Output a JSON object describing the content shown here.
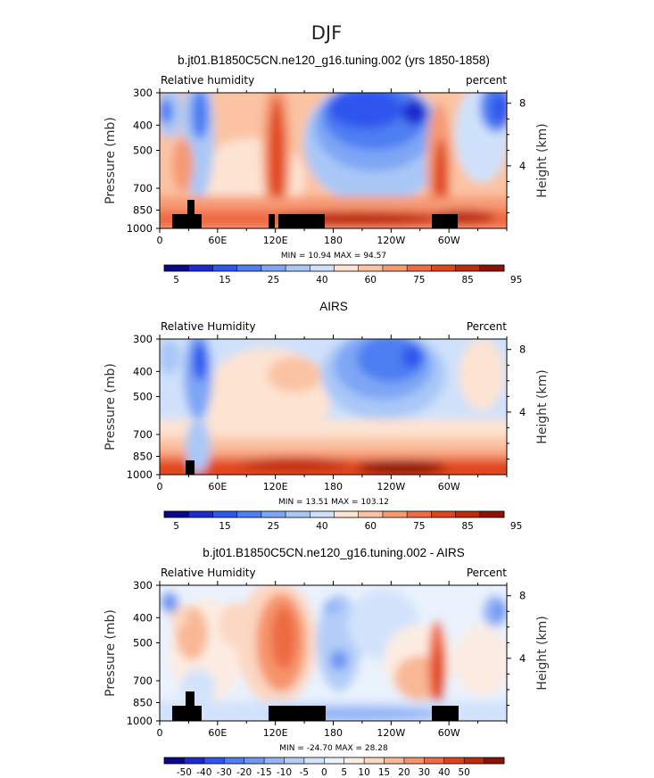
{
  "figure": {
    "title": "DJF"
  },
  "colors": {
    "rh_levels": [
      "#08088a",
      "#1c2bd0",
      "#2f56ee",
      "#4d7ef2",
      "#7ea6f5",
      "#a9c8f7",
      "#cfe1fa",
      "#fde3d2",
      "#fbc3a3",
      "#f69a73",
      "#ef6b45",
      "#e0461d",
      "#c02a0c",
      "#8e1206"
    ],
    "diff_levels": [
      "#08088a",
      "#1c2bd0",
      "#2f56ee",
      "#4d7ef2",
      "#6f97f3",
      "#93b4f6",
      "#b3cdf8",
      "#d2e3fb",
      "#eaf2fd",
      "#fdece2",
      "#fcd7c2",
      "#f9b895",
      "#f5946b",
      "#ee6a42",
      "#de431b",
      "#bd2a0c",
      "#8e1206"
    ],
    "land_mask": "#000000"
  },
  "chart_data": [
    {
      "type": "heatmap",
      "title": "b.jt01.B1850C5CN.ne120_g16.tuning.002 (yrs 1850-1858)",
      "left_label": "Relative humidity",
      "right_label": "percent",
      "ylabel": "Pressure (mb)",
      "ylabel_right": "Height (km)",
      "y_ticks": [
        "300",
        "400",
        "500",
        "700",
        "850",
        "1000"
      ],
      "y_tick_values": [
        300,
        400,
        500,
        700,
        850,
        1000
      ],
      "right_ticks": [
        "8",
        "4"
      ],
      "right_tick_values": [
        8,
        4
      ],
      "x_ticks": [
        "0",
        "60E",
        "120E",
        "180",
        "120W",
        "60W"
      ],
      "x_tick_values": [
        0,
        60,
        120,
        180,
        240,
        300
      ],
      "xlim": [
        0,
        360
      ],
      "ylim": [
        1000,
        300
      ],
      "stats_text": "MIN =   10.94   MAX =   94.57",
      "min": 10.94,
      "max": 94.57,
      "colorbar_labels": [
        "5",
        "15",
        "25",
        "40",
        "60",
        "75",
        "85",
        "95"
      ],
      "colorbar_values": [
        5,
        15,
        25,
        40,
        60,
        75,
        85,
        95
      ]
    },
    {
      "type": "heatmap",
      "title": "AIRS",
      "left_label": "Relative Humidity",
      "right_label": "Percent",
      "ylabel": "Pressure (mb)",
      "ylabel_right": "Height (km)",
      "y_ticks": [
        "300",
        "400",
        "500",
        "700",
        "850",
        "1000"
      ],
      "y_tick_values": [
        300,
        400,
        500,
        700,
        850,
        1000
      ],
      "right_ticks": [
        "8",
        "4"
      ],
      "right_tick_values": [
        8,
        4
      ],
      "x_ticks": [
        "0",
        "60E",
        "120E",
        "180",
        "120W",
        "60W"
      ],
      "x_tick_values": [
        0,
        60,
        120,
        180,
        240,
        300
      ],
      "xlim": [
        0,
        360
      ],
      "ylim": [
        1000,
        300
      ],
      "stats_text": "MIN =   13.51   MAX =  103.12",
      "min": 13.51,
      "max": 103.12,
      "colorbar_labels": [
        "5",
        "15",
        "25",
        "40",
        "60",
        "75",
        "85",
        "95"
      ],
      "colorbar_values": [
        5,
        15,
        25,
        40,
        60,
        75,
        85,
        95
      ]
    },
    {
      "type": "heatmap",
      "title": "b.jt01.B1850C5CN.ne120_g16.tuning.002 - AIRS",
      "left_label": "Relative Humidity",
      "right_label": "Percent",
      "ylabel": "Pressure (mb)",
      "ylabel_right": "Height (km)",
      "y_ticks": [
        "300",
        "400",
        "500",
        "700",
        "850",
        "1000"
      ],
      "y_tick_values": [
        300,
        400,
        500,
        700,
        850,
        1000
      ],
      "right_ticks": [
        "8",
        "4"
      ],
      "right_tick_values": [
        8,
        4
      ],
      "x_ticks": [
        "0",
        "60E",
        "120E",
        "180",
        "120W",
        "60W"
      ],
      "x_tick_values": [
        0,
        60,
        120,
        180,
        240,
        300
      ],
      "xlim": [
        0,
        360
      ],
      "ylim": [
        1000,
        300
      ],
      "stats_text": "MIN =  -24.70   MAX =   28.28",
      "min": -24.7,
      "max": 28.28,
      "colorbar_labels": [
        "-50",
        "-40",
        "-30",
        "-20",
        "-15",
        "-10",
        "-5",
        "0",
        "5",
        "10",
        "15",
        "20",
        "30",
        "40",
        "50"
      ],
      "colorbar_values": [
        -50,
        -40,
        -30,
        -20,
        -15,
        -10,
        -5,
        0,
        5,
        10,
        15,
        20,
        30,
        40,
        50
      ]
    }
  ]
}
